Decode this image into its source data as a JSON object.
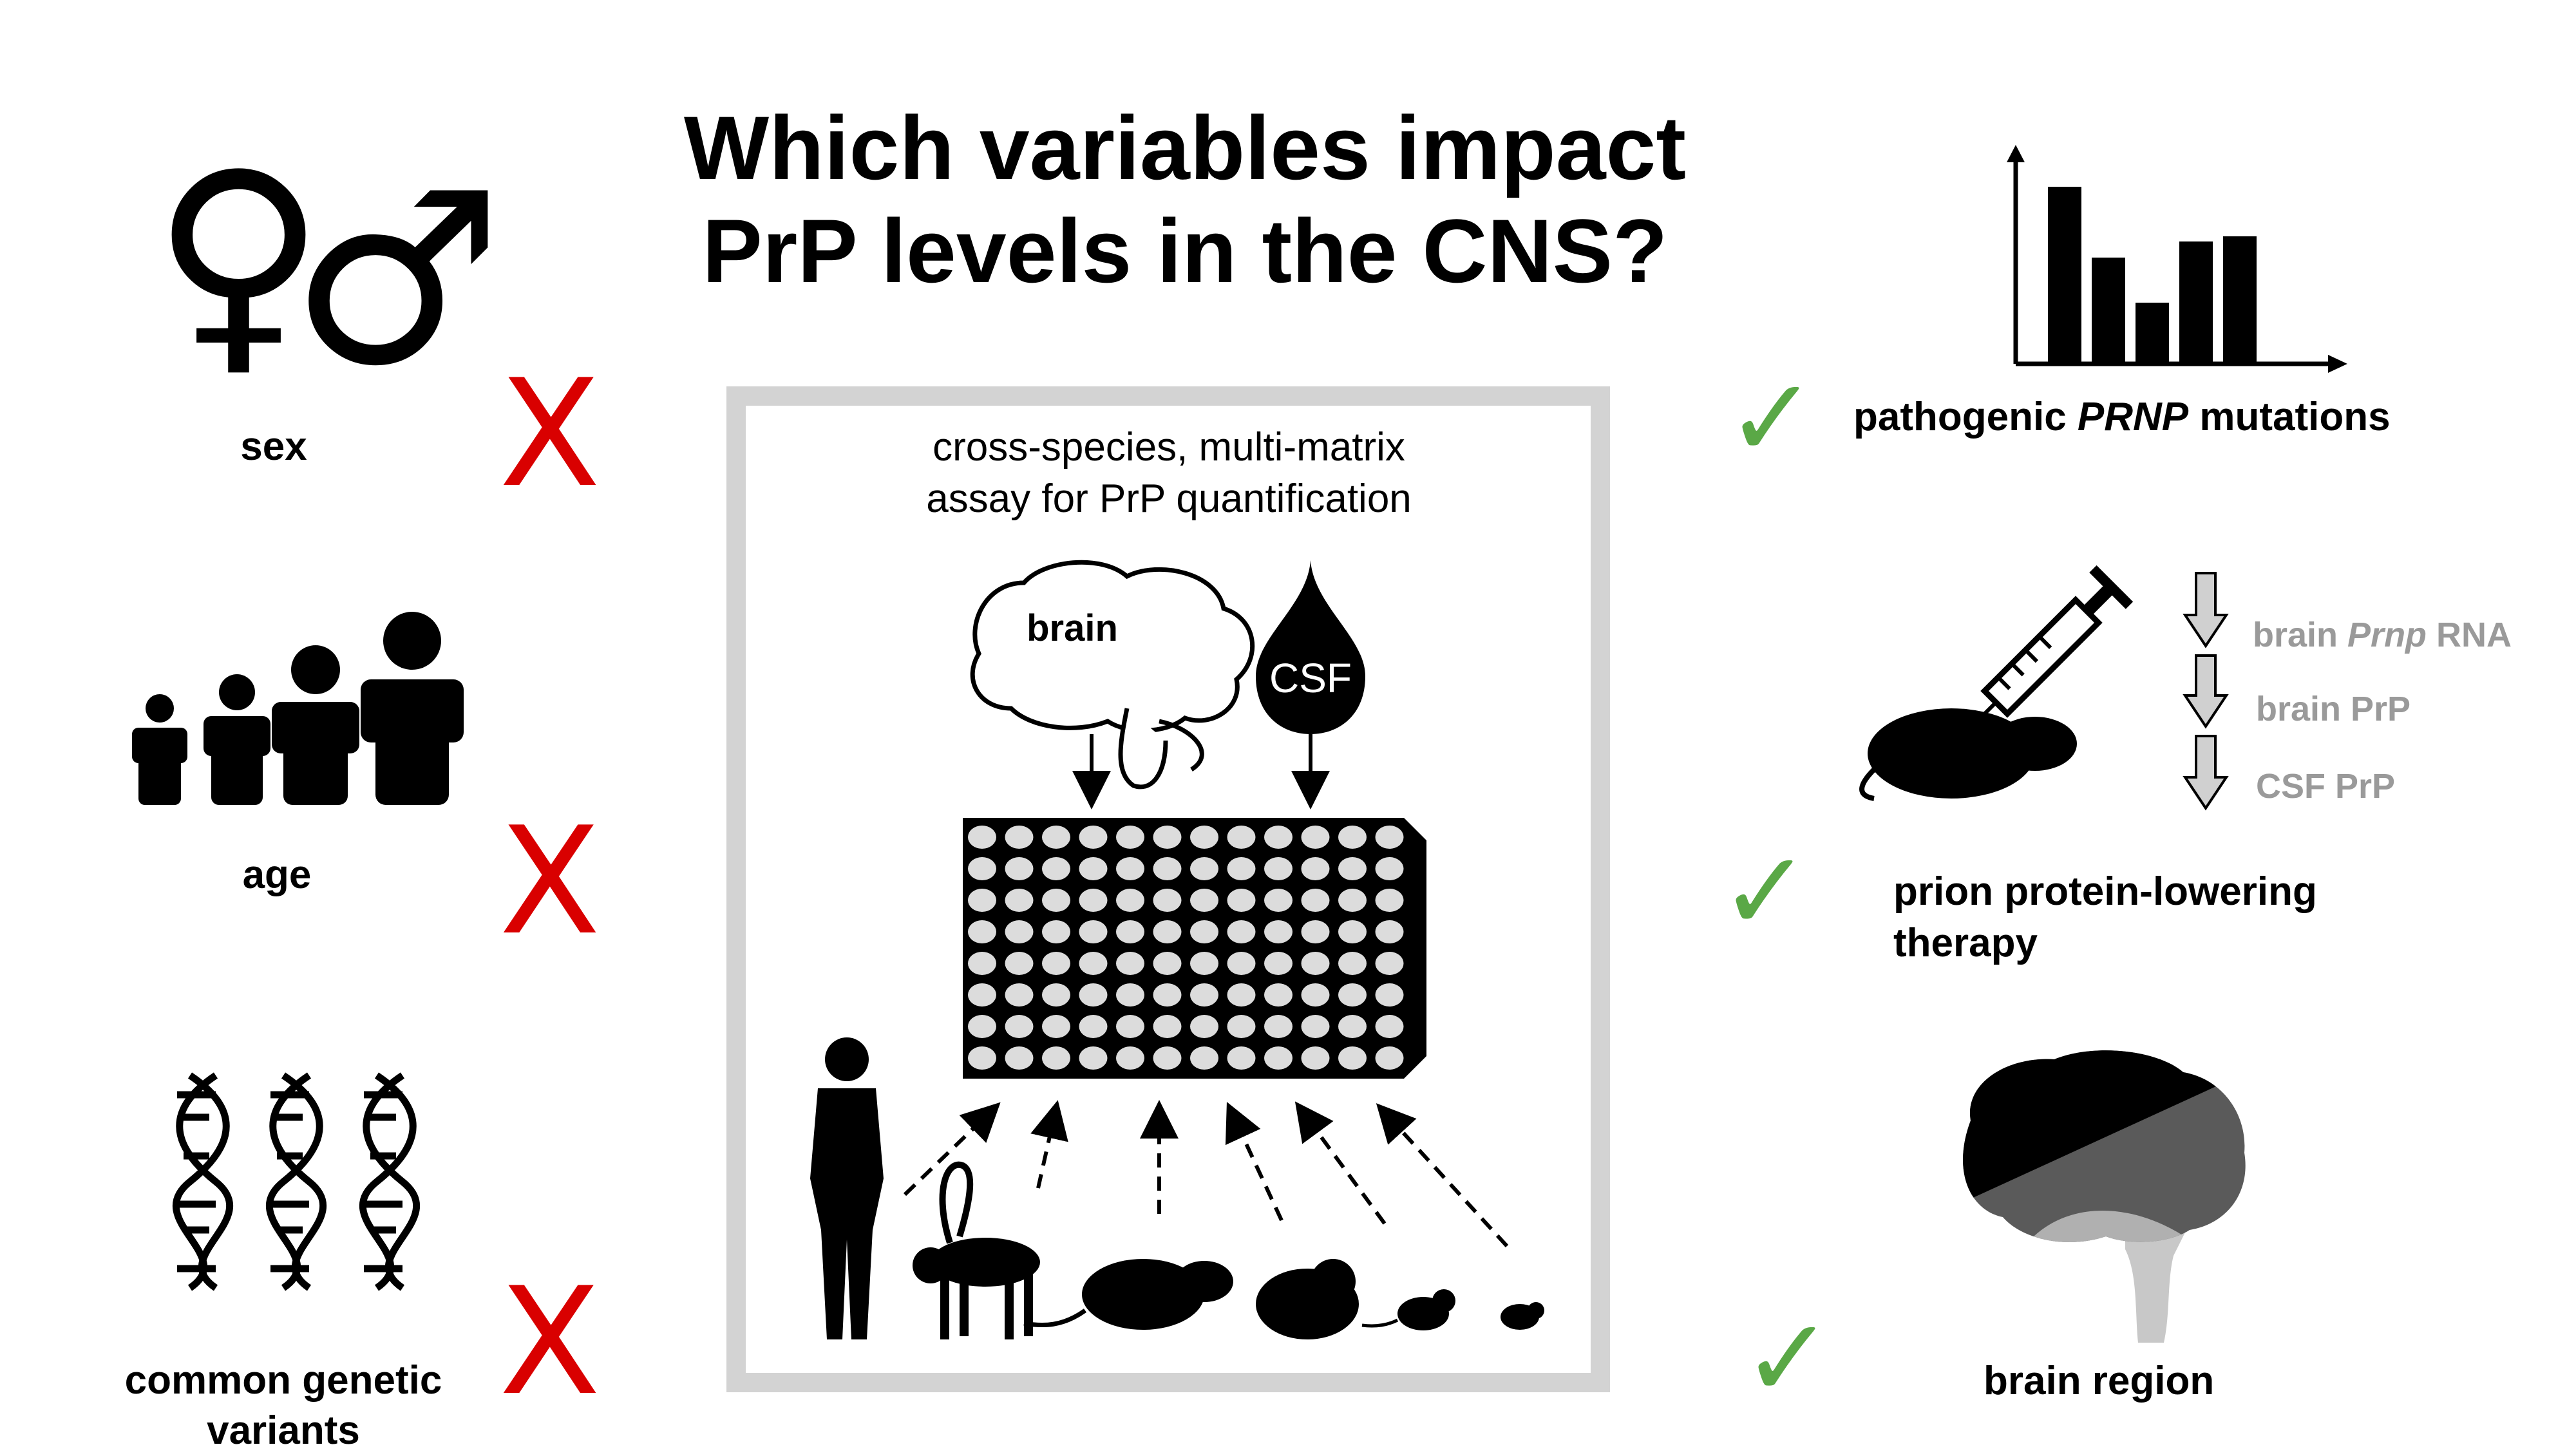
{
  "title": {
    "line1": "Which variables impact",
    "line2": "PrP levels in the CNS?"
  },
  "left_factors": [
    {
      "label": "sex",
      "result": "X"
    },
    {
      "label": "age",
      "result": "X"
    },
    {
      "label_line1": "common genetic",
      "label_line2": "variants",
      "result": "X"
    }
  ],
  "sex_symbols": {
    "female": "♀",
    "male": "♂"
  },
  "center": {
    "assay_line1": "cross-species, multi-matrix",
    "assay_line2": "assay for PrP quantification",
    "brain_label": "brain",
    "csf_label": "CSF"
  },
  "right_factors": {
    "mutations": {
      "pre": "pathogenic ",
      "em": "PRNP",
      "post": " mutations",
      "result": "✓"
    },
    "therapy": {
      "line1": "prion protein-lowering",
      "line2": "therapy",
      "result": "✓"
    },
    "cascade": [
      {
        "pre": "brain ",
        "em": "Prnp",
        "post": " RNA"
      },
      {
        "pre": "brain PrP",
        "em": "",
        "post": ""
      },
      {
        "pre": "CSF PrP",
        "em": "",
        "post": ""
      }
    ],
    "region": {
      "label": "brain region",
      "result": "✓"
    }
  },
  "colors": {
    "x_mark": "#d90000",
    "check": "#5aa846",
    "panel_border": "#d3d3d3",
    "cascade_text": "#9a9a9a"
  }
}
